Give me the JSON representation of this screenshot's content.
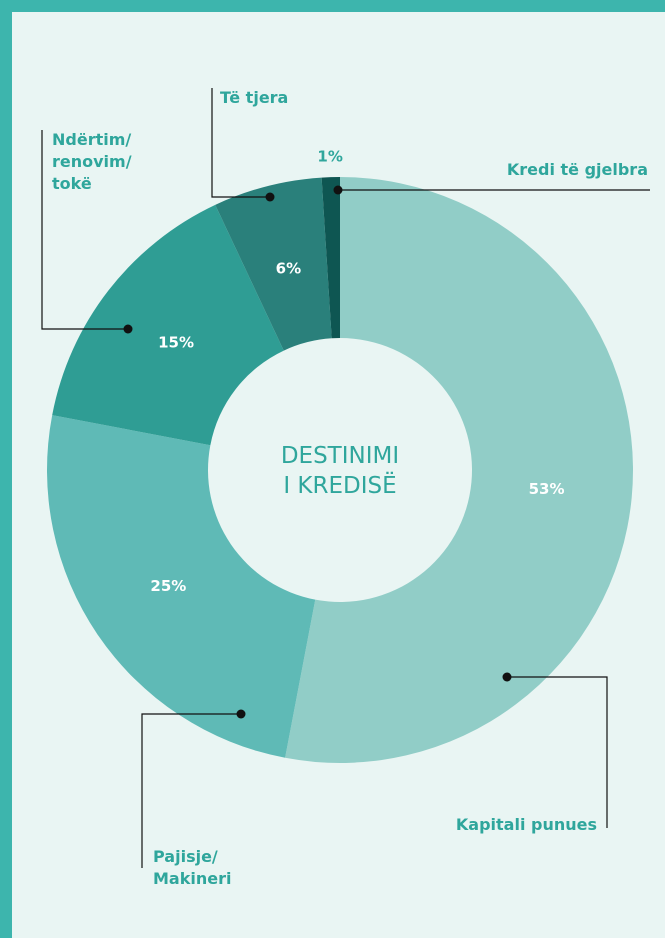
{
  "chart_data": {
    "type": "donut",
    "title": "DESTINIMI I KREDISË",
    "categories": [
      "Kapitali punues",
      "Pajisje/Makineri",
      "Ndërtim/renovim/tokë",
      "Të tjera",
      "Kredi të gjelbra"
    ],
    "values": [
      53,
      25,
      15,
      6,
      1
    ],
    "value_labels": [
      "53%",
      "25%",
      "15%",
      "6%",
      "1%"
    ],
    "colors": [
      "#91cdc7",
      "#5fbab6",
      "#2f9d94",
      "#2a807b",
      "#0e5652"
    ]
  }
}
